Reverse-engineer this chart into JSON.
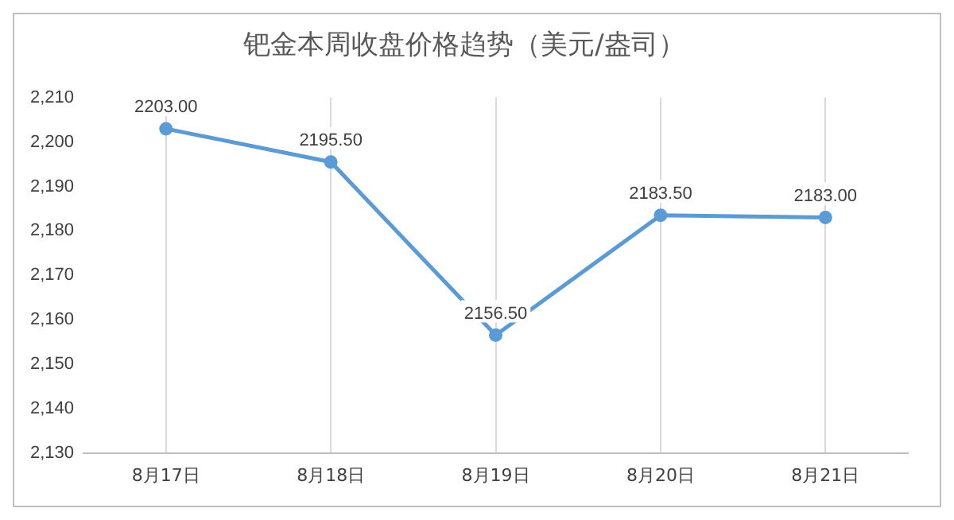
{
  "chart_data": {
    "type": "line",
    "title": "钯金本周收盘价格趋势（美元/盎司）",
    "categories": [
      "8月17日",
      "8月18日",
      "8月19日",
      "8月20日",
      "8月21日"
    ],
    "series": [
      {
        "color": "#5b9bd5",
        "values": [
          2203,
          2195.5,
          2156.5,
          2183.5,
          2183
        ],
        "value_labels": [
          "2203.00",
          "2195.50",
          "2156.50",
          "2183.50",
          "2183.00"
        ]
      }
    ],
    "ylim": [
      2130,
      2210
    ],
    "yticks": [
      {
        "value": 2130,
        "label": "2,130"
      },
      {
        "value": 2140,
        "label": "2,140"
      },
      {
        "value": 2150,
        "label": "2,150"
      },
      {
        "value": 2160,
        "label": "2,160"
      },
      {
        "value": 2170,
        "label": "2,170"
      },
      {
        "value": 2180,
        "label": "2,180"
      },
      {
        "value": 2190,
        "label": "2,190"
      },
      {
        "value": 2200,
        "label": "2,200"
      },
      {
        "value": 2210,
        "label": "2,210"
      }
    ],
    "grid": "x",
    "marker": "circle",
    "line_style": "solid",
    "legend": false
  }
}
